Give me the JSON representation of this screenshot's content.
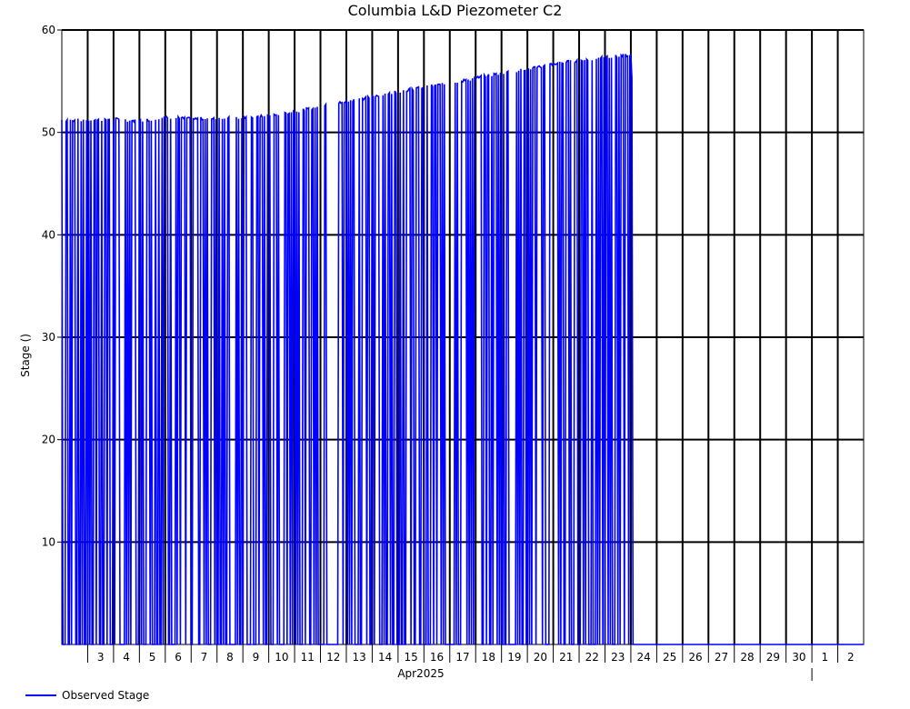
{
  "chart_data": {
    "type": "line",
    "title": "Columbia L&D Piezometer C2",
    "ylabel": "Stage ()",
    "xlabel": "Apr2025",
    "ylim": [
      0,
      60
    ],
    "yticks": [
      10,
      20,
      30,
      40,
      50,
      60
    ],
    "xrange": [
      "2025-04-02",
      "2025-05-03"
    ],
    "xtick_labels": [
      "3",
      "4",
      "5",
      "6",
      "7",
      "8",
      "9",
      "10",
      "11",
      "12",
      "13",
      "14",
      "15",
      "16",
      "17",
      "18",
      "19",
      "20",
      "21",
      "22",
      "23",
      "24",
      "25",
      "26",
      "27",
      "28",
      "29",
      "30",
      "1",
      "2"
    ],
    "grid": true,
    "legend_position": "bottom-left",
    "series": [
      {
        "name": "Observed Stage",
        "color": "#0000ff",
        "x": [
          "2025-04-02",
          "2025-04-03",
          "2025-04-04",
          "2025-04-05",
          "2025-04-06",
          "2025-04-07",
          "2025-04-08",
          "2025-04-09",
          "2025-04-10",
          "2025-04-11",
          "2025-04-12",
          "2025-04-13",
          "2025-04-14",
          "2025-04-15",
          "2025-04-16",
          "2025-04-17",
          "2025-04-18",
          "2025-04-19",
          "2025-04-20",
          "2025-04-21",
          "2025-04-22",
          "2025-04-23",
          "2025-04-24",
          "2025-04-25",
          "2025-04-26",
          "2025-04-27",
          "2025-04-28",
          "2025-04-29",
          "2025-04-30",
          "2025-05-01",
          "2025-05-02",
          "2025-05-03"
        ],
        "upper": [
          51.2,
          51.2,
          51.3,
          51.1,
          51.5,
          51.3,
          51.4,
          51.4,
          51.6,
          52.0,
          52.5,
          53.0,
          53.5,
          54.0,
          54.4,
          54.8,
          55.3,
          55.8,
          56.2,
          56.7,
          57.0,
          57.3,
          57.6,
          0,
          0,
          0,
          0,
          0,
          0,
          0,
          0,
          0
        ],
        "lower": [
          0,
          0,
          0,
          0,
          0,
          0,
          0,
          0,
          0,
          0,
          0,
          0,
          0,
          0,
          0,
          0,
          0,
          0,
          0,
          0,
          0,
          0,
          0,
          0,
          0,
          0,
          0,
          0,
          0,
          0,
          0,
          0
        ]
      }
    ]
  }
}
